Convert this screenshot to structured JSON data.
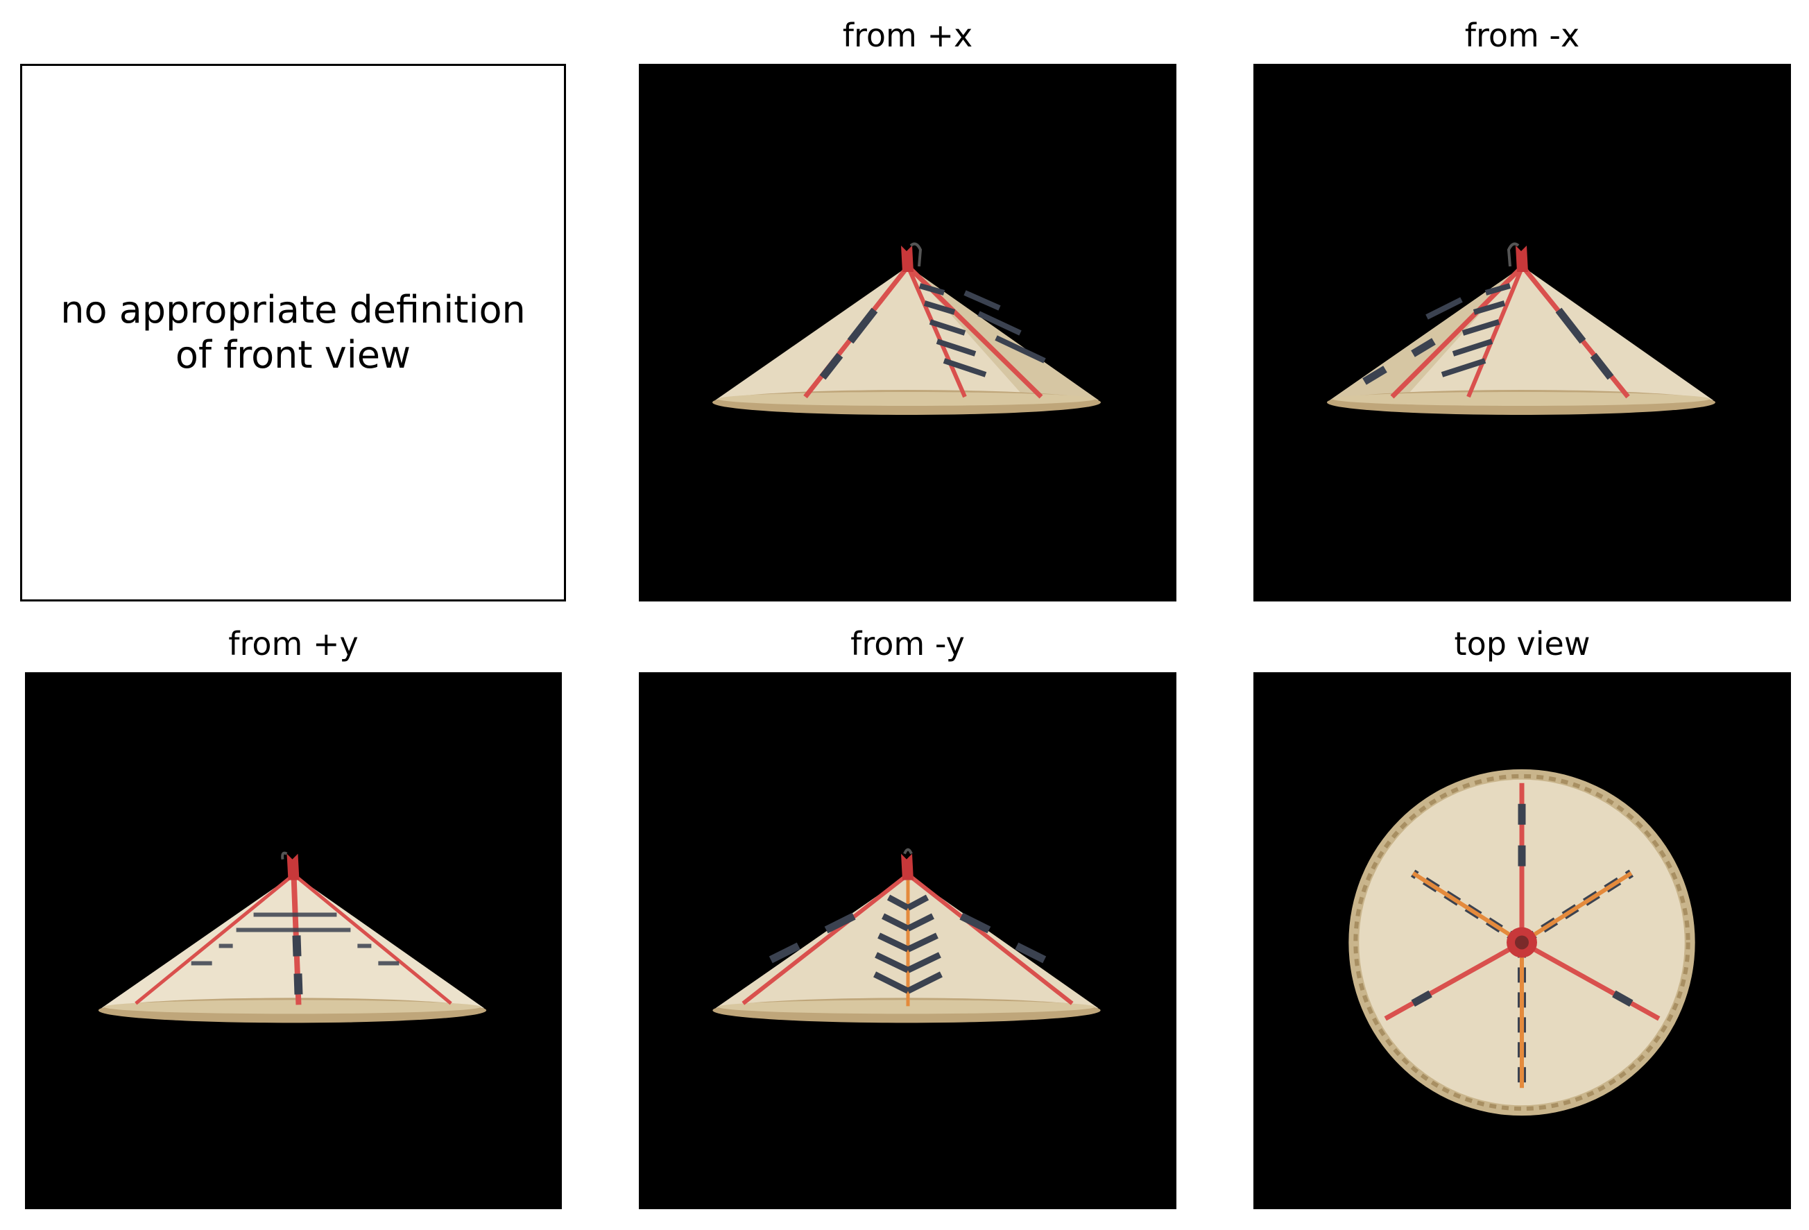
{
  "panels": {
    "front": {
      "note_line1": "no appropriate definition",
      "note_line2": "of front view"
    },
    "px": {
      "title": "from +x",
      "image": "conical-hat-side-view"
    },
    "nx": {
      "title": "from -x",
      "image": "conical-hat-side-view"
    },
    "py": {
      "title": "from +y",
      "image": "conical-hat-side-view"
    },
    "ny": {
      "title": "from -y",
      "image": "conical-hat-side-view"
    },
    "top": {
      "title": "top view",
      "image": "conical-hat-top-view"
    }
  },
  "colors": {
    "background": "#000000",
    "straw": "#e6dac0",
    "straw_dark": "#bfa67a",
    "rib_red": "#d9504d",
    "stripe_dark": "#3b4250",
    "stripe_orange": "#e48a3c"
  }
}
